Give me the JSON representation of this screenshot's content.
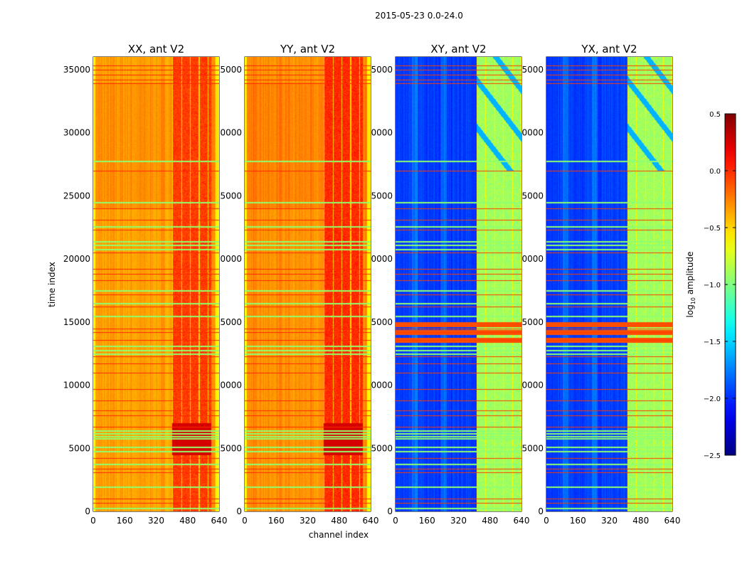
{
  "chart_data": {
    "type": "heatmap",
    "suptitle": "2015-05-23 0.0-24.0",
    "xlabel": "channel index",
    "ylabel": "time index",
    "xlim": [
      0,
      640
    ],
    "ylim": [
      0,
      36000
    ],
    "xticks": [
      0,
      160,
      320,
      480,
      640
    ],
    "yticks": [
      0,
      5000,
      10000,
      15000,
      20000,
      25000,
      30000,
      35000
    ],
    "panels": [
      {
        "title": "XX, ant V2",
        "base_log_amp": -0.35,
        "band_channels": [
          400,
          600
        ],
        "band_log_amp": -0.05
      },
      {
        "title": "YY, ant V2",
        "base_log_amp": -0.3,
        "band_channels": [
          400,
          600
        ],
        "band_log_amp": 0.0
      },
      {
        "title": "XY, ant V2",
        "base_log_amp": -1.95,
        "band_channels": [
          410,
          640
        ],
        "band_log_amp": -0.9
      },
      {
        "title": "YX, ant V2",
        "base_log_amp": -1.95,
        "band_channels": [
          410,
          640
        ],
        "band_log_amp": -0.9
      }
    ],
    "flag_rows_high": [
      700,
      1000,
      3100,
      3400,
      4200,
      6700,
      7600,
      8000,
      8800,
      9700,
      11000,
      11700,
      12300,
      13600,
      14200,
      14500,
      16200,
      17200,
      18300,
      18800,
      19200,
      20500,
      22300,
      23100,
      24000,
      27000,
      33900,
      34200,
      34600,
      35000,
      35300
    ],
    "flag_rows_low": [
      300,
      2000,
      3800,
      4800,
      5100,
      5800,
      6000,
      6200,
      6400,
      12500,
      12800,
      13100,
      15500,
      16500,
      17500,
      20800,
      21100,
      21400,
      22600,
      24500,
      27800
    ],
    "colorbar": {
      "label": "log10 amplitude",
      "range": [
        -2.5,
        0.5
      ],
      "ticks": [
        "0.5",
        "0.0",
        "−0.5",
        "−1.0",
        "−1.5",
        "−2.0",
        "−2.5"
      ],
      "colormap": "jet"
    }
  }
}
